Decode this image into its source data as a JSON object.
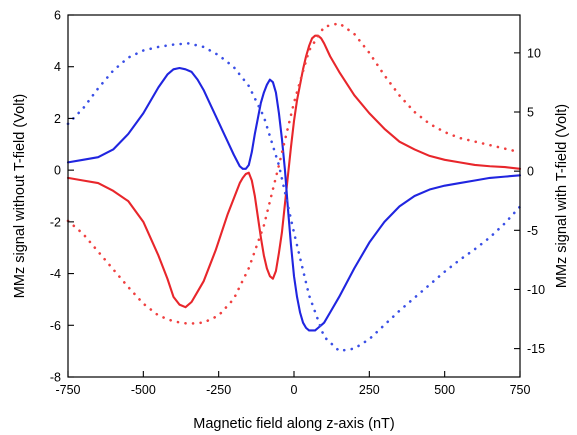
{
  "chart_data": {
    "type": "line",
    "xlabel": "Magnetic field along z-axis (nT)",
    "ylabel_left": "MMz signal without T-field (Volt)",
    "ylabel_right": "MMz signal with T-field (Volt)",
    "xlim": [
      -750,
      750
    ],
    "ylim_left": [
      -8,
      6
    ],
    "ylim_right": [
      -17.4,
      13.2
    ],
    "x_ticks": [
      "-750",
      "-500",
      "-250",
      "0",
      "250",
      "500",
      "750"
    ],
    "y_left_ticks": [
      "-8",
      "-6",
      "-4",
      "-2",
      "0",
      "2",
      "4",
      "6"
    ],
    "y_right_ticks": [
      "-15",
      "-10",
      "-5",
      "0",
      "5",
      "10"
    ],
    "grid": false,
    "legend": "none",
    "series": [
      {
        "color": "#e8262b",
        "style": "solid",
        "axis": "left",
        "x": [
          -750,
          -700,
          -650,
          -600,
          -550,
          -500,
          -450,
          -420,
          -400,
          -380,
          -360,
          -340,
          -320,
          -300,
          -280,
          -260,
          -240,
          -220,
          -200,
          -180,
          -170,
          -160,
          -150,
          -140,
          -130,
          -120,
          -110,
          -100,
          -90,
          -80,
          -70,
          -60,
          -50,
          -40,
          -30,
          -20,
          -10,
          0,
          10,
          20,
          30,
          40,
          50,
          60,
          70,
          80,
          90,
          100,
          120,
          150,
          200,
          250,
          300,
          350,
          400,
          450,
          500,
          550,
          600,
          650,
          700,
          750
        ],
        "y": [
          -0.3,
          -0.4,
          -0.5,
          -0.8,
          -1.2,
          -2.0,
          -3.3,
          -4.2,
          -4.9,
          -5.2,
          -5.3,
          -5.1,
          -4.7,
          -4.3,
          -3.7,
          -3.1,
          -2.4,
          -1.7,
          -1.1,
          -0.5,
          -0.3,
          -0.15,
          -0.1,
          -0.4,
          -1.0,
          -1.8,
          -2.6,
          -3.3,
          -3.8,
          -4.1,
          -4.2,
          -3.9,
          -3.2,
          -2.4,
          -1.3,
          -0.2,
          0.9,
          1.9,
          2.7,
          3.3,
          3.9,
          4.4,
          4.8,
          5.1,
          5.2,
          5.2,
          5.1,
          4.9,
          4.4,
          3.8,
          2.9,
          2.2,
          1.6,
          1.1,
          0.8,
          0.55,
          0.4,
          0.3,
          0.2,
          0.15,
          0.12,
          0.05
        ]
      },
      {
        "color": "#2025e0",
        "style": "solid",
        "axis": "left",
        "x": [
          -750,
          -700,
          -650,
          -600,
          -550,
          -500,
          -450,
          -420,
          -400,
          -380,
          -360,
          -340,
          -320,
          -300,
          -280,
          -260,
          -240,
          -220,
          -200,
          -180,
          -170,
          -160,
          -150,
          -140,
          -130,
          -120,
          -110,
          -100,
          -90,
          -80,
          -70,
          -60,
          -50,
          -40,
          -30,
          -20,
          -10,
          0,
          10,
          20,
          30,
          40,
          50,
          60,
          70,
          80,
          90,
          100,
          120,
          150,
          200,
          250,
          300,
          350,
          400,
          450,
          500,
          550,
          600,
          650,
          700,
          750
        ],
        "y": [
          0.3,
          0.4,
          0.5,
          0.8,
          1.4,
          2.2,
          3.2,
          3.7,
          3.9,
          3.95,
          3.9,
          3.8,
          3.5,
          3.1,
          2.6,
          2.1,
          1.6,
          1.1,
          0.6,
          0.15,
          0.05,
          0.05,
          0.2,
          0.7,
          1.4,
          2.0,
          2.6,
          3.0,
          3.3,
          3.5,
          3.4,
          3.0,
          2.2,
          1.2,
          0.0,
          -1.5,
          -2.9,
          -4.1,
          -4.9,
          -5.5,
          -5.9,
          -6.1,
          -6.2,
          -6.2,
          -6.2,
          -6.1,
          -6.0,
          -5.9,
          -5.5,
          -4.9,
          -3.8,
          -2.8,
          -2.0,
          -1.4,
          -1.0,
          -0.75,
          -0.6,
          -0.5,
          -0.4,
          -0.3,
          -0.25,
          -0.2
        ]
      },
      {
        "color": "#f04040",
        "style": "dotted",
        "axis": "right",
        "x": [
          -750,
          -700,
          -650,
          -600,
          -550,
          -500,
          -450,
          -400,
          -350,
          -300,
          -250,
          -200,
          -150,
          -100,
          -50,
          0,
          50,
          100,
          150,
          200,
          250,
          300,
          350,
          400,
          450,
          500,
          550,
          600,
          650,
          700,
          750
        ],
        "y": [
          -4.2,
          -5.3,
          -6.8,
          -8.3,
          -9.8,
          -11.2,
          -12.2,
          -12.7,
          -12.9,
          -12.8,
          -12.2,
          -10.8,
          -8.2,
          -4.6,
          0.5,
          5.8,
          10.2,
          12.2,
          12.5,
          11.6,
          10.0,
          8.1,
          6.4,
          5.0,
          4.0,
          3.3,
          2.8,
          2.5,
          2.2,
          1.9,
          1.6
        ]
      },
      {
        "color": "#3a4fe6",
        "style": "dotted",
        "axis": "right",
        "x": [
          -750,
          -700,
          -650,
          -600,
          -550,
          -500,
          -450,
          -400,
          -350,
          -300,
          -250,
          -200,
          -150,
          -100,
          -50,
          0,
          50,
          100,
          150,
          200,
          250,
          300,
          350,
          400,
          450,
          500,
          550,
          600,
          650,
          700,
          750
        ],
        "y": [
          4.0,
          5.3,
          7.0,
          8.5,
          9.6,
          10.2,
          10.5,
          10.7,
          10.8,
          10.5,
          9.8,
          8.8,
          7.2,
          4.6,
          0.5,
          -5.2,
          -10.5,
          -14.0,
          -15.2,
          -15.0,
          -14.2,
          -13.0,
          -11.8,
          -10.7,
          -9.6,
          -8.5,
          -7.5,
          -6.6,
          -5.6,
          -4.4,
          -3.0
        ]
      }
    ]
  }
}
